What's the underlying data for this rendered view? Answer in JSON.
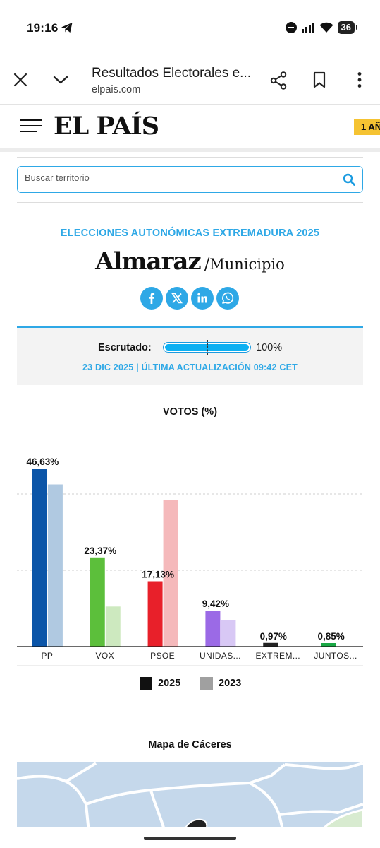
{
  "status_bar": {
    "time": "19:16",
    "battery": "36",
    "icons": [
      "telegram-icon",
      "dnd-icon",
      "signal-icon",
      "wifi-icon",
      "battery-icon"
    ]
  },
  "browser": {
    "page_title": "Resultados Electorales e...",
    "url": "elpais.com",
    "icons": [
      "close-icon",
      "chevron-down-icon",
      "share-icon",
      "bookmark-icon",
      "more-icon"
    ]
  },
  "site": {
    "logo": "EL PAÍS",
    "promo": "1 AÑ",
    "promo_color": "#f5c332"
  },
  "search": {
    "placeholder": "Buscar territorio"
  },
  "election": {
    "kicker": "ELECCIONES AUTONÓMICAS EXTREMADURA 2025",
    "place": "Almaraz",
    "separator": "/",
    "place_type": "Municipio",
    "accent_color": "#2ea8e6"
  },
  "share": [
    "facebook-icon",
    "x-icon",
    "linkedin-icon",
    "whatsapp-icon"
  ],
  "scrutiny": {
    "label": "Escrutado:",
    "value": 100,
    "value_label": "100%",
    "updated": "23 DIC 2025 | ÚLTIMA ACTUALIZACIÓN 09:42 CET"
  },
  "chart_data": {
    "type": "bar",
    "title": "VOTOS (%)",
    "categories": [
      "PP",
      "VOX",
      "PSOE",
      "UNIDAS...",
      "EXTREM...",
      "JUNTOS..."
    ],
    "series": [
      {
        "name": "2025",
        "values": [
          46.63,
          23.37,
          17.13,
          9.42,
          0.97,
          0.85
        ],
        "labels": [
          "46,63%",
          "23,37%",
          "17,13%",
          "9,42%",
          "0,97%",
          "0,85%"
        ],
        "colors": [
          "#0b55a8",
          "#5cbf3b",
          "#e8202a",
          "#9b6ae6",
          "#222222",
          "#1aa845"
        ]
      },
      {
        "name": "2023",
        "values": [
          42.5,
          10.5,
          38.5,
          7.0,
          0,
          0
        ],
        "colors": [
          "#b0c9e1",
          "#cde9bf",
          "#f5b9bb",
          "#d8c8f5",
          "#cfcfcf",
          "#bfe6c9"
        ]
      }
    ],
    "ylim": [
      0,
      50
    ],
    "grid": true,
    "legend": [
      {
        "label": "2025",
        "color": "#111111"
      },
      {
        "label": "2023",
        "color": "#a0a0a0"
      }
    ],
    "legend_position": "bottom"
  },
  "map": {
    "title": "Mapa de Cáceres"
  }
}
